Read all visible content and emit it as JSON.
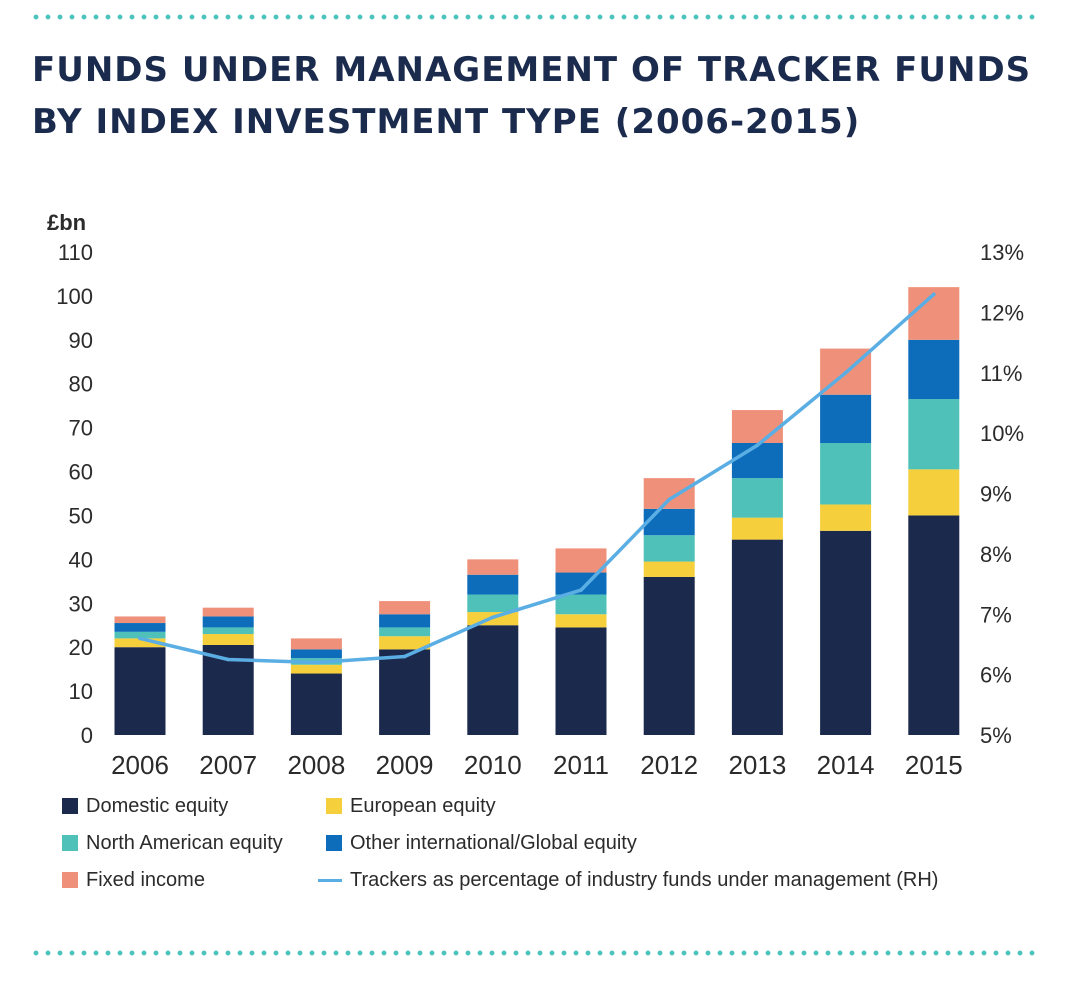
{
  "title": "FUNDS UNDER MANAGEMENT OF TRACKER FUNDS BY INDEX INVESTMENT TYPE (2006-2015)",
  "colors": {
    "domestic": "#1b2a4c",
    "european": "#f6cf3c",
    "north_american": "#4fc1b8",
    "other_international": "#0e6dbb",
    "fixed_income": "#ef917a",
    "line": "#5aaee3",
    "dots": "#4cc4bb"
  },
  "chart_data": {
    "type": "bar",
    "stacked": true,
    "categories": [
      "2006",
      "2007",
      "2008",
      "2009",
      "2010",
      "2011",
      "2012",
      "2013",
      "2014",
      "2015"
    ],
    "series": [
      {
        "name": "Domestic equity",
        "values": [
          20,
          20.5,
          14,
          19.5,
          25,
          24.5,
          36,
          44.5,
          46.5,
          50
        ]
      },
      {
        "name": "European equity",
        "values": [
          2,
          2.5,
          2,
          3,
          3,
          3,
          3.5,
          5,
          6,
          10.5
        ]
      },
      {
        "name": "North American equity",
        "values": [
          1.5,
          1.5,
          1.5,
          2,
          4,
          4.5,
          6,
          9,
          14,
          16
        ]
      },
      {
        "name": "Other international/Global equity",
        "values": [
          2,
          2.5,
          2,
          3,
          4.5,
          5,
          6,
          8,
          11,
          13.5
        ]
      },
      {
        "name": "Fixed income",
        "values": [
          1.5,
          2,
          2.5,
          3,
          3.5,
          5.5,
          7,
          7.5,
          10.5,
          12
        ]
      }
    ],
    "line_series": {
      "name": "Trackers as percentage of industry funds under management (RH)",
      "axis": "right",
      "values": [
        6.6,
        6.25,
        6.2,
        6.3,
        6.95,
        7.4,
        8.9,
        9.8,
        11.0,
        12.3
      ]
    },
    "ylabel": "£bn",
    "ylim": [
      0,
      110
    ],
    "yticks": [
      "0",
      "10",
      "20",
      "30",
      "40",
      "50",
      "60",
      "70",
      "80",
      "90",
      "100",
      "110"
    ],
    "y2lim": [
      5,
      13
    ],
    "y2ticks": [
      "5%",
      "6%",
      "7%",
      "8%",
      "9%",
      "10%",
      "11%",
      "12%",
      "13%"
    ],
    "grid": false,
    "legend_position": "bottom"
  }
}
